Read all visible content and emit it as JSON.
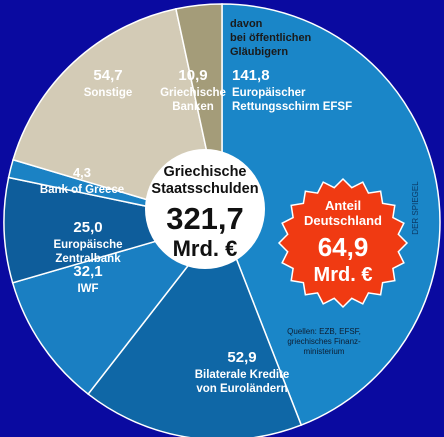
{
  "chart_data": {
    "type": "pie",
    "unit": "Mrd. €",
    "center_title_line1": "Griechische",
    "center_title_line2": "Staatsschulden",
    "center_value": "321,7",
    "center_unit": "Mrd. €",
    "slices": [
      {
        "value": 141.8,
        "value_label": "141,8",
        "label_lines": [
          "Europäischer",
          "Rettungsschirm EFSF"
        ],
        "color": "#1a86c8"
      },
      {
        "value": 52.9,
        "value_label": "52,9",
        "label_lines": [
          "Bilaterale Kredite",
          "von Euroländern"
        ],
        "color": "#0f67a6"
      },
      {
        "value": 32.1,
        "value_label": "32,1",
        "label_lines": [
          "IWF"
        ],
        "color": "#1a7fc2"
      },
      {
        "value": 25.0,
        "value_label": "25,0",
        "label_lines": [
          "Europäische",
          "Zentralbank"
        ],
        "color": "#0e5d9b"
      },
      {
        "value": 4.3,
        "value_label": "4,3",
        "label_lines": [
          "Bank of Greece"
        ],
        "color": "#1b82c4"
      },
      {
        "value": 54.7,
        "value_label": "54,7",
        "label_lines": [
          "Sonstige"
        ],
        "color": "#d3cbb6"
      },
      {
        "value": 10.9,
        "value_label": "10,9",
        "label_lines": [
          "Griechische",
          "Banken"
        ],
        "color": "#a49c79"
      }
    ],
    "group_note_lines": [
      "davon",
      "bei öffentlichen",
      "Gläubigern"
    ],
    "badge": {
      "title_line1": "Anteil",
      "title_line2": "Deutschland",
      "value": "64,9",
      "unit": "Mrd. €",
      "color": "#f03a12"
    },
    "source_lines": [
      "Quellen: EZB, EFSF,",
      "griechisches Finanz-",
      "ministerium"
    ],
    "watermark": "DER SPIEGEL"
  }
}
